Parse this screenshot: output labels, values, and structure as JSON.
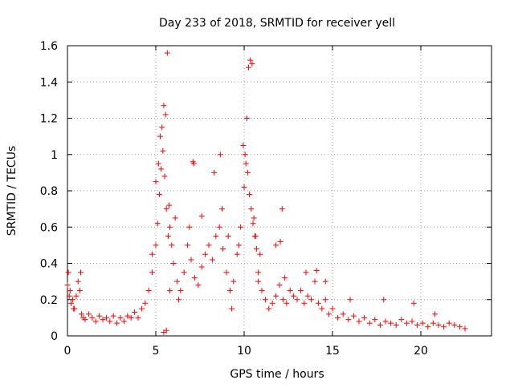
{
  "chart_data": {
    "type": "scatter",
    "title": "Day 233 of 2018, SRMTID for receiver yell",
    "xlabel": "GPS time / hours",
    "ylabel": "SRMTID / TECUs",
    "xlim": [
      0,
      24
    ],
    "ylim": [
      0,
      1.6
    ],
    "xticks": [
      0,
      5,
      10,
      15,
      20
    ],
    "xtick_labels": [
      "0",
      "5",
      "10",
      "15",
      "20"
    ],
    "yticks": [
      0,
      0.2,
      0.4,
      0.6,
      0.8,
      1,
      1.2,
      1.4,
      1.6
    ],
    "ytick_labels": [
      "0",
      "0.2",
      "0.4",
      "0.6",
      "0.8",
      "1",
      "1.2",
      "1.4",
      "1.6"
    ],
    "grid": true,
    "marker": "+",
    "series": [
      {
        "name": "SRMTID",
        "color": "#ff0000",
        "x": [
          0.0,
          0.1,
          0.2,
          0.3,
          0.4,
          0.5,
          0.6,
          0.7,
          0.8,
          0.9,
          1.0,
          1.2,
          1.4,
          1.6,
          1.8,
          2.0,
          2.2,
          2.4,
          2.6,
          2.8,
          3.0,
          3.2,
          3.4,
          3.6,
          3.8,
          4.0,
          4.2,
          4.4,
          4.6,
          4.8,
          5.0,
          5.1,
          5.2,
          5.3,
          5.4,
          5.5,
          5.6,
          5.7,
          5.8,
          5.9,
          6.0,
          6.2,
          6.4,
          6.6,
          6.8,
          7.0,
          7.2,
          7.4,
          7.6,
          7.8,
          8.0,
          8.2,
          8.4,
          8.6,
          8.8,
          9.0,
          9.2,
          9.4,
          9.6,
          9.8,
          10.0,
          10.1,
          10.2,
          10.3,
          10.4,
          10.5,
          10.6,
          10.7,
          10.8,
          11.0,
          11.2,
          11.4,
          11.6,
          11.8,
          12.0,
          12.2,
          12.4,
          12.6,
          12.8,
          13.0,
          13.2,
          13.4,
          13.6,
          13.8,
          14.0,
          14.2,
          14.4,
          14.6,
          14.8,
          15.0,
          15.3,
          15.6,
          15.9,
          16.2,
          16.5,
          16.8,
          17.1,
          17.4,
          17.7,
          18.0,
          18.3,
          18.6,
          18.9,
          19.2,
          19.5,
          19.8,
          20.1,
          20.4,
          20.7,
          21.0,
          21.3,
          21.6,
          21.9,
          22.2,
          22.5,
          0.05,
          0.15,
          0.35,
          0.75,
          5.65,
          5.45,
          5.55,
          5.35,
          5.25,
          7.1,
          7.15,
          10.35,
          10.45,
          10.25,
          10.15,
          12.15,
          9.95,
          10.05,
          8.65,
          8.3,
          11.8,
          12.05,
          4.8,
          5.0,
          5.15,
          5.75,
          6.1,
          6.9,
          7.6,
          8.75,
          9.1,
          9.7,
          10.55,
          10.65,
          10.9,
          12.3,
          13.5,
          14.1,
          14.6,
          16.0,
          17.9,
          19.6,
          20.8,
          5.6,
          5.45,
          5.8,
          6.3,
          9.3,
          10.8
        ],
        "y": [
          0.28,
          0.22,
          0.18,
          0.2,
          0.15,
          0.22,
          0.3,
          0.25,
          0.12,
          0.1,
          0.09,
          0.12,
          0.1,
          0.08,
          0.11,
          0.09,
          0.1,
          0.08,
          0.11,
          0.07,
          0.1,
          0.08,
          0.11,
          0.1,
          0.13,
          0.1,
          0.15,
          0.18,
          0.25,
          0.35,
          0.5,
          0.62,
          0.78,
          0.92,
          1.02,
          0.88,
          0.7,
          0.55,
          0.6,
          0.5,
          0.4,
          0.3,
          0.25,
          0.35,
          0.5,
          0.42,
          0.32,
          0.28,
          0.38,
          0.45,
          0.5,
          0.42,
          0.55,
          0.6,
          0.48,
          0.35,
          0.25,
          0.3,
          0.45,
          0.6,
          0.82,
          0.95,
          0.9,
          0.78,
          0.7,
          0.62,
          0.55,
          0.48,
          0.35,
          0.25,
          0.2,
          0.15,
          0.18,
          0.22,
          0.28,
          0.2,
          0.18,
          0.25,
          0.22,
          0.2,
          0.25,
          0.18,
          0.22,
          0.2,
          0.3,
          0.18,
          0.15,
          0.2,
          0.12,
          0.15,
          0.1,
          0.12,
          0.09,
          0.11,
          0.08,
          0.1,
          0.07,
          0.09,
          0.06,
          0.08,
          0.07,
          0.06,
          0.09,
          0.07,
          0.08,
          0.06,
          0.07,
          0.05,
          0.07,
          0.06,
          0.05,
          0.07,
          0.06,
          0.05,
          0.04,
          0.35,
          0.25,
          0.15,
          0.35,
          1.56,
          1.27,
          1.22,
          1.15,
          1.1,
          0.96,
          0.95,
          1.52,
          1.5,
          1.48,
          1.2,
          0.7,
          1.05,
          1.0,
          1.0,
          0.9,
          0.5,
          0.52,
          0.45,
          0.85,
          0.95,
          0.72,
          0.65,
          0.6,
          0.66,
          0.7,
          0.55,
          0.5,
          0.65,
          0.55,
          0.45,
          0.32,
          0.35,
          0.36,
          0.3,
          0.2,
          0.2,
          0.18,
          0.12,
          0.03,
          0.02,
          0.25,
          0.2,
          0.15,
          0.3
        ]
      }
    ]
  }
}
